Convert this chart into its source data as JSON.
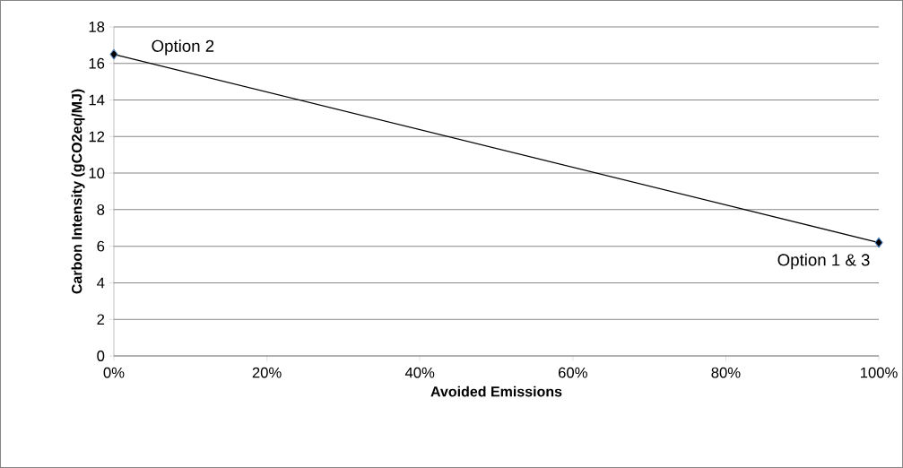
{
  "chart_data": {
    "type": "line",
    "xlabel": "Avoided Emissions",
    "ylabel": "Carbon Intensity (gCO2eq/MJ)",
    "x": [
      0,
      100
    ],
    "series": [
      {
        "color": "#000000",
        "values": [
          16.5,
          6.2
        ]
      }
    ],
    "xlim": [
      0,
      100
    ],
    "xticks": [
      {
        "value": 0,
        "label": "0%"
      },
      {
        "value": 20,
        "label": "20%"
      },
      {
        "value": 40,
        "label": "40%"
      },
      {
        "value": 60,
        "label": "60%"
      },
      {
        "value": 80,
        "label": "80%"
      },
      {
        "value": 100,
        "label": "100%"
      }
    ],
    "ylim": [
      0,
      18
    ],
    "yticks": [
      0,
      2,
      4,
      6,
      8,
      10,
      12,
      14,
      16,
      18
    ],
    "grid": "y",
    "marker": "diamond",
    "line_style": "solid",
    "annotations": [
      {
        "text": "Option 2",
        "x": 0,
        "y": 16.5
      },
      {
        "text": "Option  1 & 3",
        "x": 100,
        "y": 6.2
      }
    ]
  }
}
